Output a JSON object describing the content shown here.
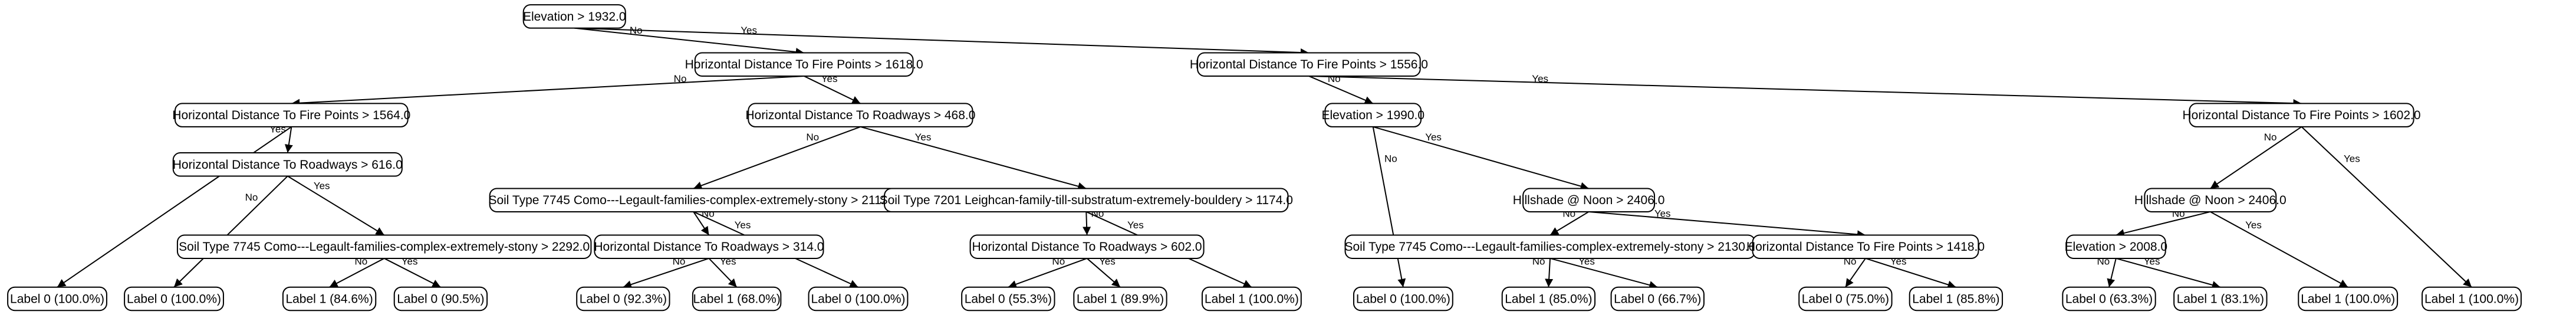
{
  "tree": {
    "nodes": [
      {
        "id": "n0",
        "text": "Elevation > 1932.0"
      },
      {
        "id": "n1",
        "text": "Horizontal Distance To Fire Points > 1618.0"
      },
      {
        "id": "n2",
        "text": "Horizontal Distance To Fire Points > 1556.0"
      },
      {
        "id": "n3",
        "text": "Horizontal Distance To Fire Points > 1564.0"
      },
      {
        "id": "n4",
        "text": "Horizontal Distance To Roadways > 468.0"
      },
      {
        "id": "n5",
        "text": "Elevation > 1990.0"
      },
      {
        "id": "n6",
        "text": "Horizontal Distance To Fire Points > 1602.0"
      },
      {
        "id": "n7",
        "text": "Horizontal Distance To Roadways > 616.0"
      },
      {
        "id": "n8",
        "text": "Soil Type 7745 Como---Legault-families-complex-extremely-stony > 2112.0"
      },
      {
        "id": "n9",
        "text": "Soil Type 7201 Leighcan-family-till-substratum-extremely-bouldery > 1174.0"
      },
      {
        "id": "n10",
        "text": "Hillshade @ Noon > 2406.0"
      },
      {
        "id": "n11",
        "text": "Hillshade @ Noon > 2406.0"
      },
      {
        "id": "n12",
        "text": "Soil Type 7745 Como---Legault-families-complex-extremely-stony > 2292.0"
      },
      {
        "id": "n13",
        "text": "Horizontal Distance To Roadways > 314.0"
      },
      {
        "id": "n14",
        "text": "Horizontal Distance To Roadways > 602.0"
      },
      {
        "id": "n15",
        "text": "Soil Type 7745 Como---Legault-families-complex-extremely-stony > 2130.0"
      },
      {
        "id": "n16",
        "text": "Horizontal Distance To Fire Points > 1418.0"
      },
      {
        "id": "n17",
        "text": "Elevation > 2008.0"
      },
      {
        "id": "l1",
        "text": "Label 0 (100.0%)"
      },
      {
        "id": "l2",
        "text": "Label 0 (100.0%)"
      },
      {
        "id": "l3",
        "text": "Label 1 (84.6%)"
      },
      {
        "id": "l4",
        "text": "Label 0 (90.5%)"
      },
      {
        "id": "l5",
        "text": "Label 0 (92.3%)"
      },
      {
        "id": "l6",
        "text": "Label 1 (68.0%)"
      },
      {
        "id": "l7",
        "text": "Label 0 (100.0%)"
      },
      {
        "id": "l8",
        "text": "Label 0 (55.3%)"
      },
      {
        "id": "l9",
        "text": "Label 1 (89.9%)"
      },
      {
        "id": "l10",
        "text": "Label 1 (100.0%)"
      },
      {
        "id": "l11",
        "text": "Label 0 (100.0%)"
      },
      {
        "id": "l12",
        "text": "Label 1 (85.0%)"
      },
      {
        "id": "l13",
        "text": "Label 0 (66.7%)"
      },
      {
        "id": "l14",
        "text": "Label 0 (75.0%)"
      },
      {
        "id": "l15",
        "text": "Label 1 (85.8%)"
      },
      {
        "id": "l16",
        "text": "Label 0 (63.3%)"
      },
      {
        "id": "l17",
        "text": "Label 1 (83.1%)"
      },
      {
        "id": "l18",
        "text": "Label 1 (100.0%)"
      },
      {
        "id": "l19",
        "text": "Label 1 (100.0%)"
      }
    ],
    "edges": [
      {
        "from": "n0",
        "to": "n1",
        "label": "No"
      },
      {
        "from": "n0",
        "to": "n2",
        "label": "Yes"
      },
      {
        "from": "n1",
        "to": "n3",
        "label": "No"
      },
      {
        "from": "n1",
        "to": "n4",
        "label": "Yes"
      },
      {
        "from": "n2",
        "to": "n5",
        "label": "No"
      },
      {
        "from": "n2",
        "to": "n6",
        "label": "Yes"
      },
      {
        "from": "n3",
        "to": "l1",
        "label": "No"
      },
      {
        "from": "n3",
        "to": "n7",
        "label": "Yes"
      },
      {
        "from": "n7",
        "to": "l2",
        "label": "No"
      },
      {
        "from": "n7",
        "to": "n12",
        "label": "Yes"
      },
      {
        "from": "n12",
        "to": "l3",
        "label": "No"
      },
      {
        "from": "n12",
        "to": "l4",
        "label": "Yes"
      },
      {
        "from": "n4",
        "to": "n8",
        "label": "No"
      },
      {
        "from": "n4",
        "to": "n9",
        "label": "Yes"
      },
      {
        "from": "n8",
        "to": "n13",
        "label": "No"
      },
      {
        "from": "n8",
        "to": "l7",
        "label": "Yes"
      },
      {
        "from": "n13",
        "to": "l5",
        "label": "No"
      },
      {
        "from": "n13",
        "to": "l6",
        "label": "Yes"
      },
      {
        "from": "n9",
        "to": "n14",
        "label": "No"
      },
      {
        "from": "n9",
        "to": "l10",
        "label": "Yes"
      },
      {
        "from": "n14",
        "to": "l8",
        "label": "No"
      },
      {
        "from": "n14",
        "to": "l9",
        "label": "Yes"
      },
      {
        "from": "n5",
        "to": "l11",
        "label": "No"
      },
      {
        "from": "n5",
        "to": "n10",
        "label": "Yes"
      },
      {
        "from": "n10",
        "to": "n15",
        "label": "No"
      },
      {
        "from": "n10",
        "to": "n16",
        "label": "Yes"
      },
      {
        "from": "n15",
        "to": "l12",
        "label": "No"
      },
      {
        "from": "n15",
        "to": "l13",
        "label": "Yes"
      },
      {
        "from": "n16",
        "to": "l14",
        "label": "No"
      },
      {
        "from": "n16",
        "to": "l15",
        "label": "Yes"
      },
      {
        "from": "n6",
        "to": "n11",
        "label": "No"
      },
      {
        "from": "n6",
        "to": "l19",
        "label": "Yes"
      },
      {
        "from": "n11",
        "to": "n17",
        "label": "No"
      },
      {
        "from": "n11",
        "to": "l18",
        "label": "Yes"
      },
      {
        "from": "n17",
        "to": "l16",
        "label": "No"
      },
      {
        "from": "n17",
        "to": "l17",
        "label": "Yes"
      }
    ]
  }
}
